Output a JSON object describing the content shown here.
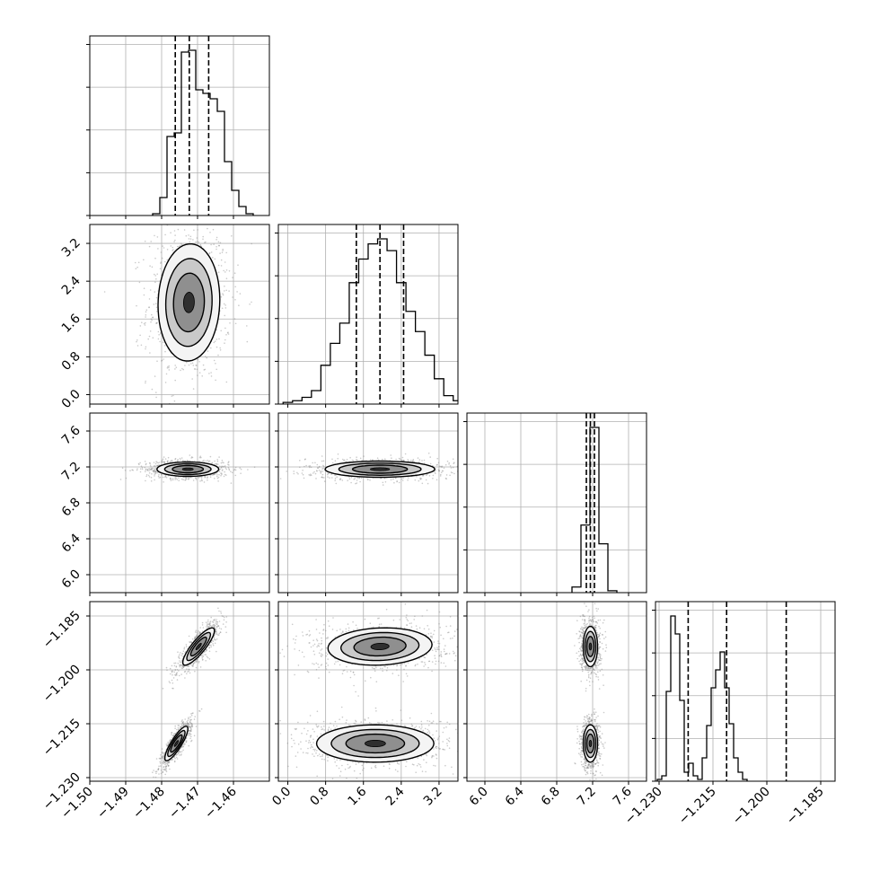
{
  "chart_data": {
    "type": "corner",
    "n_params": 4,
    "grid": true,
    "colors": {
      "line": "#000000",
      "grid": "#b0b0b0",
      "scatter": "#8a8a8a"
    },
    "params": [
      {
        "range": [
          -1.5,
          -1.45
        ],
        "ticks": [
          -1.5,
          -1.49,
          -1.48,
          -1.47,
          -1.46
        ],
        "tick_labels": [
          "−1.50",
          "−1.49",
          "−1.48",
          "−1.47",
          "−1.46"
        ],
        "quantiles": [
          -1.4762,
          -1.4723,
          -1.4669
        ],
        "hist": {
          "edges_start": -1.4825,
          "bin_width": 0.002,
          "counts": [
            0.01,
            0.1,
            0.44,
            0.46,
            0.91,
            0.92,
            0.7,
            0.68,
            0.65,
            0.58,
            0.3,
            0.14,
            0.05,
            0.01
          ]
        }
      },
      {
        "range": [
          -0.2,
          3.6
        ],
        "ticks": [
          0.0,
          0.8,
          1.6,
          2.4,
          3.2
        ],
        "tick_labels": [
          "0.0",
          "0.8",
          "1.6",
          "2.4",
          "3.2"
        ],
        "quantiles": [
          1.45,
          1.95,
          2.45
        ],
        "hist": {
          "edges_start": -0.1,
          "bin_width": 0.2,
          "counts": [
            0.01,
            0.02,
            0.04,
            0.08,
            0.23,
            0.36,
            0.48,
            0.72,
            0.86,
            0.95,
            0.98,
            0.91,
            0.72,
            0.55,
            0.43,
            0.29,
            0.15,
            0.05,
            0.02
          ]
        }
      },
      {
        "range": [
          5.8,
          7.8
        ],
        "ticks": [
          6.0,
          6.4,
          6.8,
          7.2,
          7.6
        ],
        "tick_labels": [
          "6.0",
          "6.4",
          "6.8",
          "7.2",
          "7.6"
        ],
        "quantiles": [
          7.13,
          7.175,
          7.22
        ],
        "hist": {
          "edges_start": 6.97,
          "bin_width": 0.1,
          "counts": [
            0.03,
            0.36,
            0.88,
            0.26,
            0.01
          ]
        }
      },
      {
        "range": [
          -1.231,
          -1.181
        ],
        "ticks": [
          -1.23,
          -1.215,
          -1.2,
          -1.185
        ],
        "tick_labels": [
          "−1.230",
          "−1.215",
          "−1.200",
          "−1.185"
        ],
        "quantiles": [
          -1.2219,
          -1.2112,
          -1.1946
        ],
        "hist": {
          "edges_start": -1.2305,
          "bin_width": 0.00125,
          "counts": [
            0.01,
            0.03,
            0.5,
            0.92,
            0.82,
            0.45,
            0.05,
            0.1,
            0.03,
            0.01,
            0.13,
            0.31,
            0.52,
            0.62,
            0.72,
            0.52,
            0.32,
            0.13,
            0.05,
            0.01
          ]
        }
      }
    ],
    "blobs": [
      {
        "i": 1,
        "j": 0,
        "modes": [
          {
            "cx": -1.4724,
            "cy": 1.95,
            "sx": 0.0043,
            "sy": 0.62,
            "rho": 0.05,
            "w": 1.0
          }
        ]
      },
      {
        "i": 2,
        "j": 0,
        "modes": [
          {
            "cx": -1.4727,
            "cy": 7.175,
            "sx": 0.0043,
            "sy": 0.04,
            "rho": 0.0,
            "w": 1.0
          }
        ]
      },
      {
        "i": 2,
        "j": 1,
        "modes": [
          {
            "cx": 1.95,
            "cy": 7.175,
            "sx": 0.58,
            "sy": 0.045,
            "rho": 0.0,
            "w": 1.0
          }
        ]
      },
      {
        "i": 3,
        "j": 0,
        "modes": [
          {
            "cx": -1.4697,
            "cy": -1.1935,
            "sx": 0.0022,
            "sy": 0.0026,
            "rho": 0.85,
            "w": 1.0
          },
          {
            "cx": -1.4759,
            "cy": -1.2205,
            "sx": 0.0016,
            "sy": 0.0024,
            "rho": 0.85,
            "w": 1.0
          }
        ]
      },
      {
        "i": 3,
        "j": 1,
        "modes": [
          {
            "cx": 1.95,
            "cy": -1.1935,
            "sx": 0.55,
            "sy": 0.0026,
            "rho": 0.1,
            "w": 1.0
          },
          {
            "cx": 1.85,
            "cy": -1.2205,
            "sx": 0.62,
            "sy": 0.0026,
            "rho": 0.0,
            "w": 1.0
          }
        ]
      },
      {
        "i": 3,
        "j": 2,
        "modes": [
          {
            "cx": 7.175,
            "cy": -1.1935,
            "sx": 0.04,
            "sy": 0.0028,
            "rho": 0.0,
            "w": 1.0
          },
          {
            "cx": 7.175,
            "cy": -1.2205,
            "sx": 0.04,
            "sy": 0.0026,
            "rho": 0.0,
            "w": 1.0
          }
        ]
      }
    ]
  }
}
